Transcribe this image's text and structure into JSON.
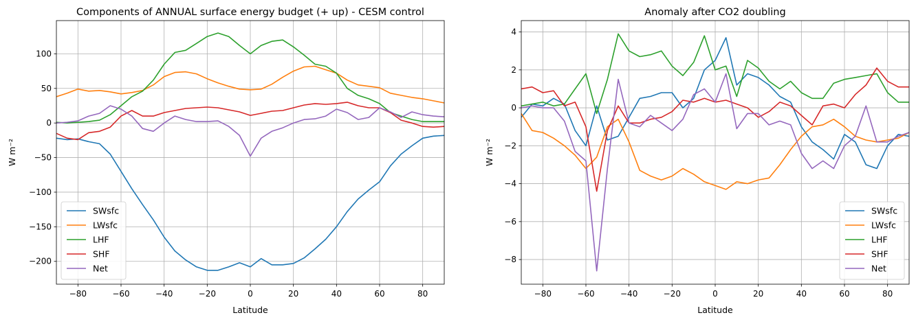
{
  "chart_data": [
    {
      "type": "line",
      "title": "Components of ANNUAL surface energy budget (+ up) - CESM control",
      "xlabel": "Latitude",
      "ylabel": "W m⁻²",
      "xlim": [
        -90,
        90
      ],
      "ylim": [
        -233,
        148
      ],
      "xticks": [
        -80,
        -60,
        -40,
        -20,
        0,
        20,
        40,
        60,
        80
      ],
      "yticks": [
        -200,
        -150,
        -100,
        -50,
        0,
        50,
        100
      ],
      "grid": true,
      "legend_position": "lower left",
      "x": [
        -90,
        -85,
        -80,
        -75,
        -70,
        -65,
        -60,
        -55,
        -50,
        -45,
        -40,
        -35,
        -30,
        -25,
        -20,
        -15,
        -10,
        -5,
        0,
        5,
        10,
        15,
        20,
        25,
        30,
        35,
        40,
        45,
        50,
        55,
        60,
        65,
        70,
        75,
        80,
        85,
        90
      ],
      "series": [
        {
          "name": "SWsfc",
          "color": "#1f77b4",
          "values": [
            -22,
            -24,
            -23,
            -27,
            -30,
            -45,
            -70,
            -95,
            -118,
            -140,
            -165,
            -185,
            -198,
            -208,
            -213,
            -213,
            -208,
            -202,
            -208,
            -196,
            -205,
            -205,
            -203,
            -195,
            -182,
            -168,
            -150,
            -128,
            -110,
            -97,
            -85,
            -62,
            -45,
            -33,
            -22,
            -19,
            -18
          ]
        },
        {
          "name": "LWsfc",
          "color": "#ff7f0e",
          "values": [
            38,
            43,
            49,
            46,
            47,
            45,
            42,
            44,
            47,
            55,
            67,
            73,
            74,
            71,
            64,
            58,
            53,
            49,
            48,
            49,
            56,
            66,
            75,
            81,
            82,
            77,
            72,
            62,
            55,
            53,
            51,
            43,
            40,
            37,
            35,
            32,
            29
          ]
        },
        {
          "name": "LHF",
          "color": "#2ca02c",
          "values": [
            1,
            0,
            1,
            2,
            4,
            12,
            25,
            38,
            46,
            62,
            85,
            102,
            105,
            115,
            125,
            130,
            125,
            112,
            100,
            112,
            118,
            120,
            110,
            98,
            85,
            82,
            72,
            50,
            40,
            35,
            28,
            15,
            10,
            5,
            2,
            2,
            2
          ]
        },
        {
          "name": "SHF",
          "color": "#d62728",
          "values": [
            -15,
            -22,
            -24,
            -14,
            -12,
            -6,
            10,
            18,
            10,
            10,
            15,
            18,
            21,
            22,
            23,
            22,
            19,
            16,
            11,
            14,
            17,
            18,
            22,
            26,
            28,
            27,
            28,
            30,
            25,
            22,
            22,
            15,
            4,
            0,
            -5,
            -6,
            -5
          ]
        },
        {
          "name": "Net",
          "color": "#9467bd",
          "values": [
            0,
            1,
            3,
            10,
            14,
            25,
            20,
            10,
            -8,
            -12,
            0,
            10,
            5,
            2,
            2,
            3,
            -5,
            -18,
            -48,
            -22,
            -12,
            -7,
            0,
            5,
            6,
            10,
            20,
            15,
            5,
            8,
            22,
            16,
            8,
            16,
            12,
            10,
            9
          ]
        }
      ]
    },
    {
      "type": "line",
      "title": "Anomaly after CO2 doubling",
      "xlabel": "Latitude",
      "ylabel": "W m⁻²",
      "xlim": [
        -90,
        90
      ],
      "ylim": [
        -9.3,
        4.6
      ],
      "xticks": [
        -80,
        -60,
        -40,
        -20,
        0,
        20,
        40,
        60,
        80
      ],
      "yticks": [
        -8,
        -6,
        -4,
        -2,
        0,
        2,
        4
      ],
      "grid": true,
      "legend_position": "lower right",
      "x": [
        -90,
        -85,
        -80,
        -75,
        -70,
        -65,
        -60,
        -55,
        -50,
        -45,
        -40,
        -35,
        -30,
        -25,
        -20,
        -15,
        -10,
        -5,
        0,
        5,
        10,
        15,
        20,
        25,
        30,
        35,
        40,
        45,
        50,
        55,
        60,
        65,
        70,
        75,
        80,
        85,
        90
      ],
      "series": [
        {
          "name": "SWsfc",
          "color": "#1f77b4",
          "values": [
            -0.5,
            0.2,
            0.1,
            0.5,
            0.2,
            -1.2,
            -2.0,
            0.1,
            -1.7,
            -1.5,
            -0.5,
            0.5,
            0.6,
            0.8,
            0.8,
            0.0,
            0.5,
            2.0,
            2.5,
            3.7,
            1.2,
            1.8,
            1.6,
            1.2,
            0.6,
            0.3,
            -1.0,
            -1.8,
            -2.2,
            -2.7,
            -1.4,
            -1.8,
            -3.0,
            -3.2,
            -2.0,
            -1.4,
            -1.5
          ]
        },
        {
          "name": "LWsfc",
          "color": "#ff7f0e",
          "values": [
            -0.3,
            -1.2,
            -1.3,
            -1.6,
            -2.0,
            -2.5,
            -3.2,
            -2.6,
            -1.0,
            -0.6,
            -1.8,
            -3.3,
            -3.6,
            -3.8,
            -3.6,
            -3.2,
            -3.5,
            -3.9,
            -4.1,
            -4.3,
            -3.9,
            -4.0,
            -3.8,
            -3.7,
            -3.0,
            -2.2,
            -1.5,
            -1.0,
            -0.9,
            -0.6,
            -1.0,
            -1.5,
            -1.7,
            -1.8,
            -1.7,
            -1.6,
            -1.3
          ]
        },
        {
          "name": "LHF",
          "color": "#2ca02c",
          "values": [
            0.1,
            0.2,
            0.3,
            0.1,
            0.2,
            1.0,
            1.8,
            -0.3,
            1.5,
            3.9,
            3.0,
            2.7,
            2.8,
            3.0,
            2.2,
            1.7,
            2.4,
            3.8,
            2.0,
            2.2,
            0.6,
            2.5,
            2.1,
            1.4,
            1.0,
            1.4,
            0.8,
            0.5,
            0.5,
            1.3,
            1.5,
            1.6,
            1.7,
            1.8,
            0.8,
            0.3,
            0.3
          ]
        },
        {
          "name": "SHF",
          "color": "#d62728",
          "values": [
            1.0,
            1.1,
            0.8,
            0.9,
            0.1,
            0.3,
            -1.0,
            -4.4,
            -1.2,
            0.1,
            -0.8,
            -0.8,
            -0.6,
            -0.5,
            -0.2,
            0.4,
            0.3,
            0.5,
            0.3,
            0.4,
            0.2,
            0.0,
            -0.5,
            -0.2,
            0.3,
            0.1,
            -0.4,
            -0.9,
            0.1,
            0.2,
            0.0,
            0.7,
            1.2,
            2.1,
            1.4,
            1.1,
            1.1
          ]
        },
        {
          "name": "Net",
          "color": "#9467bd",
          "values": [
            0.0,
            0.1,
            0.0,
            0.0,
            -0.7,
            -2.3,
            -2.8,
            -8.6,
            -3.2,
            1.5,
            -0.8,
            -1.0,
            -0.4,
            -0.8,
            -1.2,
            -0.6,
            0.7,
            1.0,
            0.3,
            1.8,
            -1.1,
            -0.3,
            -0.3,
            -0.9,
            -0.7,
            -0.9,
            -2.4,
            -3.2,
            -2.8,
            -3.2,
            -2.0,
            -1.5,
            0.1,
            -1.8,
            -1.8,
            -1.5,
            -1.3
          ]
        }
      ]
    }
  ]
}
